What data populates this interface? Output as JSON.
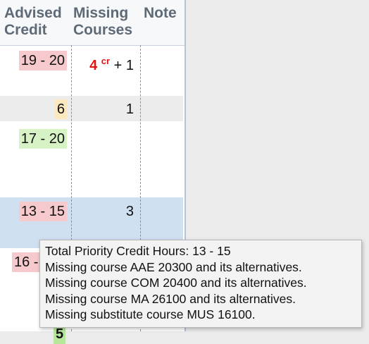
{
  "table": {
    "headers": {
      "advised_credit": [
        "Advised",
        "Credit"
      ],
      "missing_courses": [
        "Missing",
        "Courses"
      ],
      "note": "Note"
    },
    "rows": [
      {
        "advised_credit": "19 - 20",
        "credit_badge_color": "#f6c9cc",
        "missing_credits": "4",
        "missing_credits_unit": "cr",
        "missing_courses": "+ 1"
      },
      {
        "advised_credit": "6",
        "credit_badge_color": "#fbe8be",
        "missing_courses": "1"
      },
      {
        "advised_credit": "17 - 20",
        "credit_badge_color": "#d7f3c6",
        "missing_courses": ""
      },
      {
        "advised_credit": "13 - 15",
        "credit_badge_color": "#f6c9cc",
        "missing_courses": "3"
      },
      {
        "advised_credit": "16 -",
        "credit_badge_color": "#f6c9cc"
      },
      {
        "advised_credit": "5",
        "credit_badge_color": "#b6e79a"
      }
    ]
  },
  "tooltip": {
    "lines": [
      "Total Priority Credit Hours: 13 - 15",
      "Missing course AAE 20300 and its alternatives.",
      "Missing course COM 20400 and its alternatives.",
      "Missing course MA 26100 and its alternatives.",
      "Missing substitute course MUS 16100."
    ]
  },
  "colors": {
    "red_badge": "#f6c9cc",
    "yellow_badge": "#fbe8be",
    "green_badge": "#d7f3c6",
    "highlight_row": "#cfe0f1",
    "alt_row": "#ececec",
    "missing_credit_text": "#e01212"
  }
}
